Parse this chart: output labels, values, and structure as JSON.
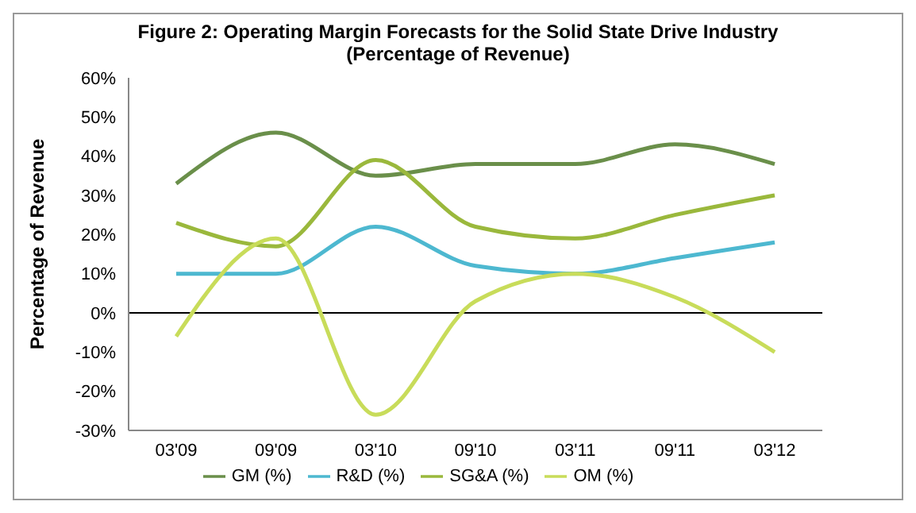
{
  "chart_data": {
    "type": "line",
    "title": "Figure 2:  Operating Margin Forecasts for the Solid State Drive Industry",
    "subtitle": "(Percentage of Revenue)",
    "ylabel": "Percentage of Revenue",
    "categories": [
      "03'09",
      "09'09",
      "03'10",
      "09'10",
      "03'11",
      "09'11",
      "03'12"
    ],
    "series": [
      {
        "name": "GM (%)",
        "color": "#6a8f4a",
        "values": [
          33,
          46,
          35,
          38,
          38,
          43,
          38
        ]
      },
      {
        "name": "R&D (%)",
        "color": "#4db8d0",
        "values": [
          10,
          10,
          22,
          12,
          10,
          14,
          18
        ]
      },
      {
        "name": "SG&A (%)",
        "color": "#9ab83c",
        "values": [
          23,
          17,
          39,
          22,
          19,
          25,
          30
        ]
      },
      {
        "name": "OM (%)",
        "color": "#c8dc5a",
        "values": [
          -6,
          19,
          -26,
          3,
          10,
          4,
          -10
        ]
      }
    ],
    "ylim": [
      -30,
      60
    ],
    "yticks": [
      {
        "value": -30,
        "label": "-30%"
      },
      {
        "value": -20,
        "label": "-20%"
      },
      {
        "value": -10,
        "label": "-10%"
      },
      {
        "value": 0,
        "label": "0%"
      },
      {
        "value": 10,
        "label": "10%"
      },
      {
        "value": 20,
        "label": "20%"
      },
      {
        "value": 30,
        "label": "30%"
      },
      {
        "value": 40,
        "label": "40%"
      },
      {
        "value": 50,
        "label": "50%"
      },
      {
        "value": 60,
        "label": "60%"
      }
    ],
    "ref_lines": [
      {
        "axis": "y",
        "value": 0,
        "color": "#000000"
      }
    ],
    "grid": false,
    "legend": "bottom",
    "marker": "none",
    "line_style": "solid"
  }
}
